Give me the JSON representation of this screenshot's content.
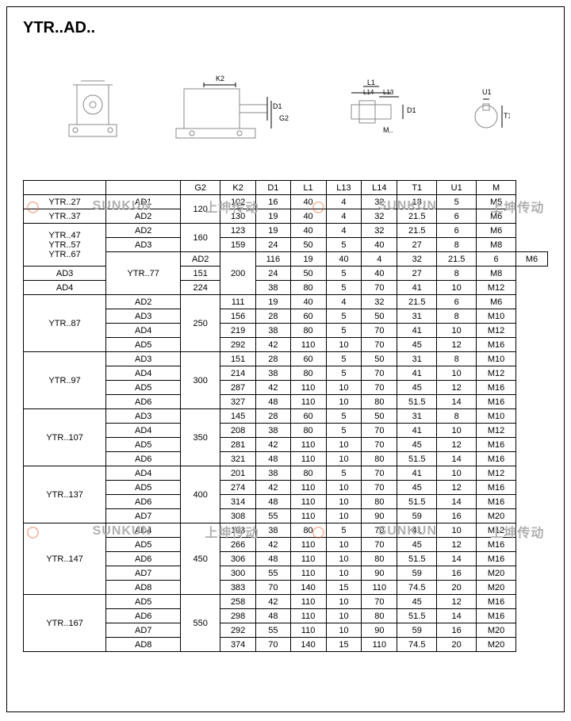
{
  "title": "YTR..AD..",
  "dim_labels": {
    "k2": "K2",
    "d1": "D1",
    "g2": "G2",
    "l1": "L1",
    "l13": "L13",
    "l14": "L14",
    "m": "M..",
    "u1": "U1",
    "t1": "T1"
  },
  "watermark": {
    "brand": "SUNKUN",
    "cn": "上坤传动",
    "sub": "SUNKUN DRIVE"
  },
  "headers": [
    "",
    "",
    "G2",
    "K2",
    "D1",
    "L1",
    "L13",
    "L14",
    "T1",
    "U1",
    "M"
  ],
  "rows": [
    {
      "model": "YTR..27",
      "ad": "AD1",
      "g2": "120",
      "k2": "102",
      "d1": "16",
      "l1": "40",
      "l13": "4",
      "l14": "32",
      "t1": "18",
      "u1": "5",
      "m": "M5",
      "span": 1,
      "g2span": 2
    },
    {
      "model": "YTR..37",
      "ad": "AD2",
      "k2": "130",
      "d1": "19",
      "l1": "40",
      "l13": "4",
      "l14": "32",
      "t1": "21.5",
      "u1": "6",
      "m": "M6",
      "span": 1
    },
    {
      "model": "YTR..47",
      "ad": "AD2",
      "g2": "160",
      "k2": "123",
      "d1": "19",
      "l1": "40",
      "l13": "4",
      "l14": "32",
      "t1": "21.5",
      "u1": "6",
      "m": "M6",
      "span": 1,
      "g2span": 2,
      "mspan": 3,
      "models": [
        "YTR..47",
        "YTR..57",
        "YTR..67"
      ]
    },
    {
      "ad": "AD3",
      "k2": "159",
      "d1": "24",
      "l1": "50",
      "l13": "5",
      "l14": "40",
      "t1": "27",
      "u1": "8",
      "m": "M8"
    },
    {
      "model": "YTR..77",
      "ad": "AD2",
      "g2": "200",
      "k2": "116",
      "d1": "19",
      "l1": "40",
      "l13": "4",
      "l14": "32",
      "t1": "21.5",
      "u1": "6",
      "m": "M6",
      "mspan": 3,
      "g2span": 3
    },
    {
      "ad": "AD3",
      "k2": "151",
      "d1": "24",
      "l1": "50",
      "l13": "5",
      "l14": "40",
      "t1": "27",
      "u1": "8",
      "m": "M8"
    },
    {
      "ad": "AD4",
      "k2": "224",
      "d1": "38",
      "l1": "80",
      "l13": "5",
      "l14": "70",
      "t1": "41",
      "u1": "10",
      "m": "M12"
    },
    {
      "model": "YTR..87",
      "ad": "AD2",
      "g2": "250",
      "k2": "111",
      "d1": "19",
      "l1": "40",
      "l13": "4",
      "l14": "32",
      "t1": "21.5",
      "u1": "6",
      "m": "M6",
      "mspan": 4,
      "g2span": 4
    },
    {
      "ad": "AD3",
      "k2": "156",
      "d1": "28",
      "l1": "60",
      "l13": "5",
      "l14": "50",
      "t1": "31",
      "u1": "8",
      "m": "M10"
    },
    {
      "ad": "AD4",
      "k2": "219",
      "d1": "38",
      "l1": "80",
      "l13": "5",
      "l14": "70",
      "t1": "41",
      "u1": "10",
      "m": "M12"
    },
    {
      "ad": "AD5",
      "k2": "292",
      "d1": "42",
      "l1": "110",
      "l13": "10",
      "l14": "70",
      "t1": "45",
      "u1": "12",
      "m": "M16"
    },
    {
      "model": "YTR..97",
      "ad": "AD3",
      "g2": "300",
      "k2": "151",
      "d1": "28",
      "l1": "60",
      "l13": "5",
      "l14": "50",
      "t1": "31",
      "u1": "8",
      "m": "M10",
      "mspan": 4,
      "g2span": 4
    },
    {
      "ad": "AD4",
      "k2": "214",
      "d1": "38",
      "l1": "80",
      "l13": "5",
      "l14": "70",
      "t1": "41",
      "u1": "10",
      "m": "M12"
    },
    {
      "ad": "AD5",
      "k2": "287",
      "d1": "42",
      "l1": "110",
      "l13": "10",
      "l14": "70",
      "t1": "45",
      "u1": "12",
      "m": "M16"
    },
    {
      "ad": "AD6",
      "k2": "327",
      "d1": "48",
      "l1": "110",
      "l13": "10",
      "l14": "80",
      "t1": "51.5",
      "u1": "14",
      "m": "M16"
    },
    {
      "model": "YTR..107",
      "ad": "AD3",
      "g2": "350",
      "k2": "145",
      "d1": "28",
      "l1": "60",
      "l13": "5",
      "l14": "50",
      "t1": "31",
      "u1": "8",
      "m": "M10",
      "mspan": 4,
      "g2span": 4
    },
    {
      "ad": "AD4",
      "k2": "208",
      "d1": "38",
      "l1": "80",
      "l13": "5",
      "l14": "70",
      "t1": "41",
      "u1": "10",
      "m": "M12"
    },
    {
      "ad": "AD5",
      "k2": "281",
      "d1": "42",
      "l1": "110",
      "l13": "10",
      "l14": "70",
      "t1": "45",
      "u1": "12",
      "m": "M16"
    },
    {
      "ad": "AD6",
      "k2": "321",
      "d1": "48",
      "l1": "110",
      "l13": "10",
      "l14": "80",
      "t1": "51.5",
      "u1": "14",
      "m": "M16"
    },
    {
      "model": "YTR..137",
      "ad": "AD4",
      "g2": "400",
      "k2": "201",
      "d1": "38",
      "l1": "80",
      "l13": "5",
      "l14": "70",
      "t1": "41",
      "u1": "10",
      "m": "M12",
      "mspan": 4,
      "g2span": 4
    },
    {
      "ad": "AD5",
      "k2": "274",
      "d1": "42",
      "l1": "110",
      "l13": "10",
      "l14": "70",
      "t1": "45",
      "u1": "12",
      "m": "M16"
    },
    {
      "ad": "AD6",
      "k2": "314",
      "d1": "48",
      "l1": "110",
      "l13": "10",
      "l14": "80",
      "t1": "51.5",
      "u1": "14",
      "m": "M16"
    },
    {
      "ad": "AD7",
      "k2": "308",
      "d1": "55",
      "l1": "110",
      "l13": "10",
      "l14": "90",
      "t1": "59",
      "u1": "16",
      "m": "M20"
    },
    {
      "model": "YTR..147",
      "ad": "AD4",
      "g2": "450",
      "k2": "193",
      "d1": "38",
      "l1": "80",
      "l13": "5",
      "l14": "70",
      "t1": "41",
      "u1": "10",
      "m": "M12",
      "mspan": 5,
      "g2span": 5
    },
    {
      "ad": "AD5",
      "k2": "266",
      "d1": "42",
      "l1": "110",
      "l13": "10",
      "l14": "70",
      "t1": "45",
      "u1": "12",
      "m": "M16"
    },
    {
      "ad": "AD6",
      "k2": "306",
      "d1": "48",
      "l1": "110",
      "l13": "10",
      "l14": "80",
      "t1": "51.5",
      "u1": "14",
      "m": "M16"
    },
    {
      "ad": "AD7",
      "k2": "300",
      "d1": "55",
      "l1": "110",
      "l13": "10",
      "l14": "90",
      "t1": "59",
      "u1": "16",
      "m": "M20"
    },
    {
      "ad": "AD8",
      "k2": "383",
      "d1": "70",
      "l1": "140",
      "l13": "15",
      "l14": "110",
      "t1": "74.5",
      "u1": "20",
      "m": "M20"
    },
    {
      "model": "YTR..167",
      "ad": "AD5",
      "g2": "550",
      "k2": "258",
      "d1": "42",
      "l1": "110",
      "l13": "10",
      "l14": "70",
      "t1": "45",
      "u1": "12",
      "m": "M16",
      "mspan": 4,
      "g2span": 4
    },
    {
      "ad": "AD6",
      "k2": "298",
      "d1": "48",
      "l1": "110",
      "l13": "10",
      "l14": "80",
      "t1": "51.5",
      "u1": "14",
      "m": "M16"
    },
    {
      "ad": "AD7",
      "k2": "292",
      "d1": "55",
      "l1": "110",
      "l13": "10",
      "l14": "90",
      "t1": "59",
      "u1": "16",
      "m": "M20"
    },
    {
      "ad": "AD8",
      "k2": "374",
      "d1": "70",
      "l1": "140",
      "l13": "15",
      "l14": "110",
      "t1": "74.5",
      "u1": "20",
      "m": "M20"
    }
  ]
}
